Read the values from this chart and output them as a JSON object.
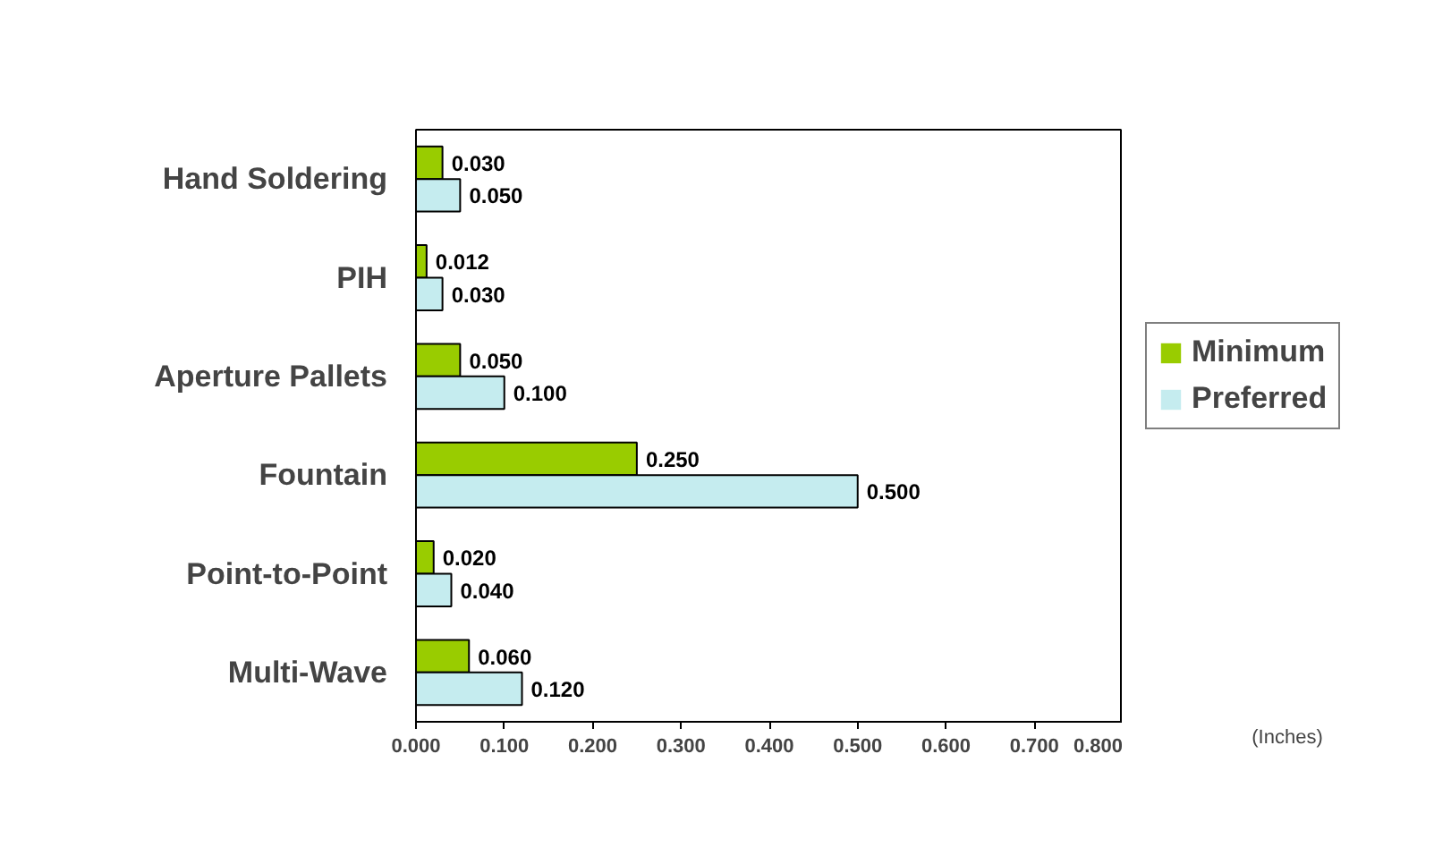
{
  "chart_data": {
    "type": "bar",
    "orientation": "horizontal",
    "categories": [
      "Hand Soldering",
      "PIH",
      "Aperture Pallets",
      "Fountain",
      "Point-to-Point",
      "Multi-Wave"
    ],
    "series": [
      {
        "name": "Minimum",
        "color": "#99cc00",
        "values": [
          0.03,
          0.012,
          0.05,
          0.25,
          0.02,
          0.06
        ],
        "value_labels": [
          "0.030",
          "0.012",
          "0.050",
          "0.250",
          "0.020",
          "0.060"
        ]
      },
      {
        "name": "Preferred",
        "color": "#c5ecef",
        "values": [
          0.05,
          0.03,
          0.1,
          0.5,
          0.04,
          0.12
        ],
        "value_labels": [
          "0.050",
          "0.030",
          "0.100",
          "0.500",
          "0.040",
          "0.120"
        ]
      }
    ],
    "annotations": [
      "(Inches)"
    ],
    "xlim": [
      0,
      0.8
    ],
    "xticks": [
      {
        "value": 0,
        "label": "0.000"
      },
      {
        "value": 0.1,
        "label": "0.100"
      },
      {
        "value": 0.2,
        "label": "0.200"
      },
      {
        "value": 0.3,
        "label": "0.300"
      },
      {
        "value": 0.4,
        "label": "0.400"
      },
      {
        "value": 0.5,
        "label": "0.500"
      },
      {
        "value": 0.6,
        "label": "0.600"
      },
      {
        "value": 0.7,
        "label": "0.700"
      },
      {
        "value": 0.8,
        "label": "0.800"
      }
    ],
    "grid": false,
    "legend": "right"
  }
}
